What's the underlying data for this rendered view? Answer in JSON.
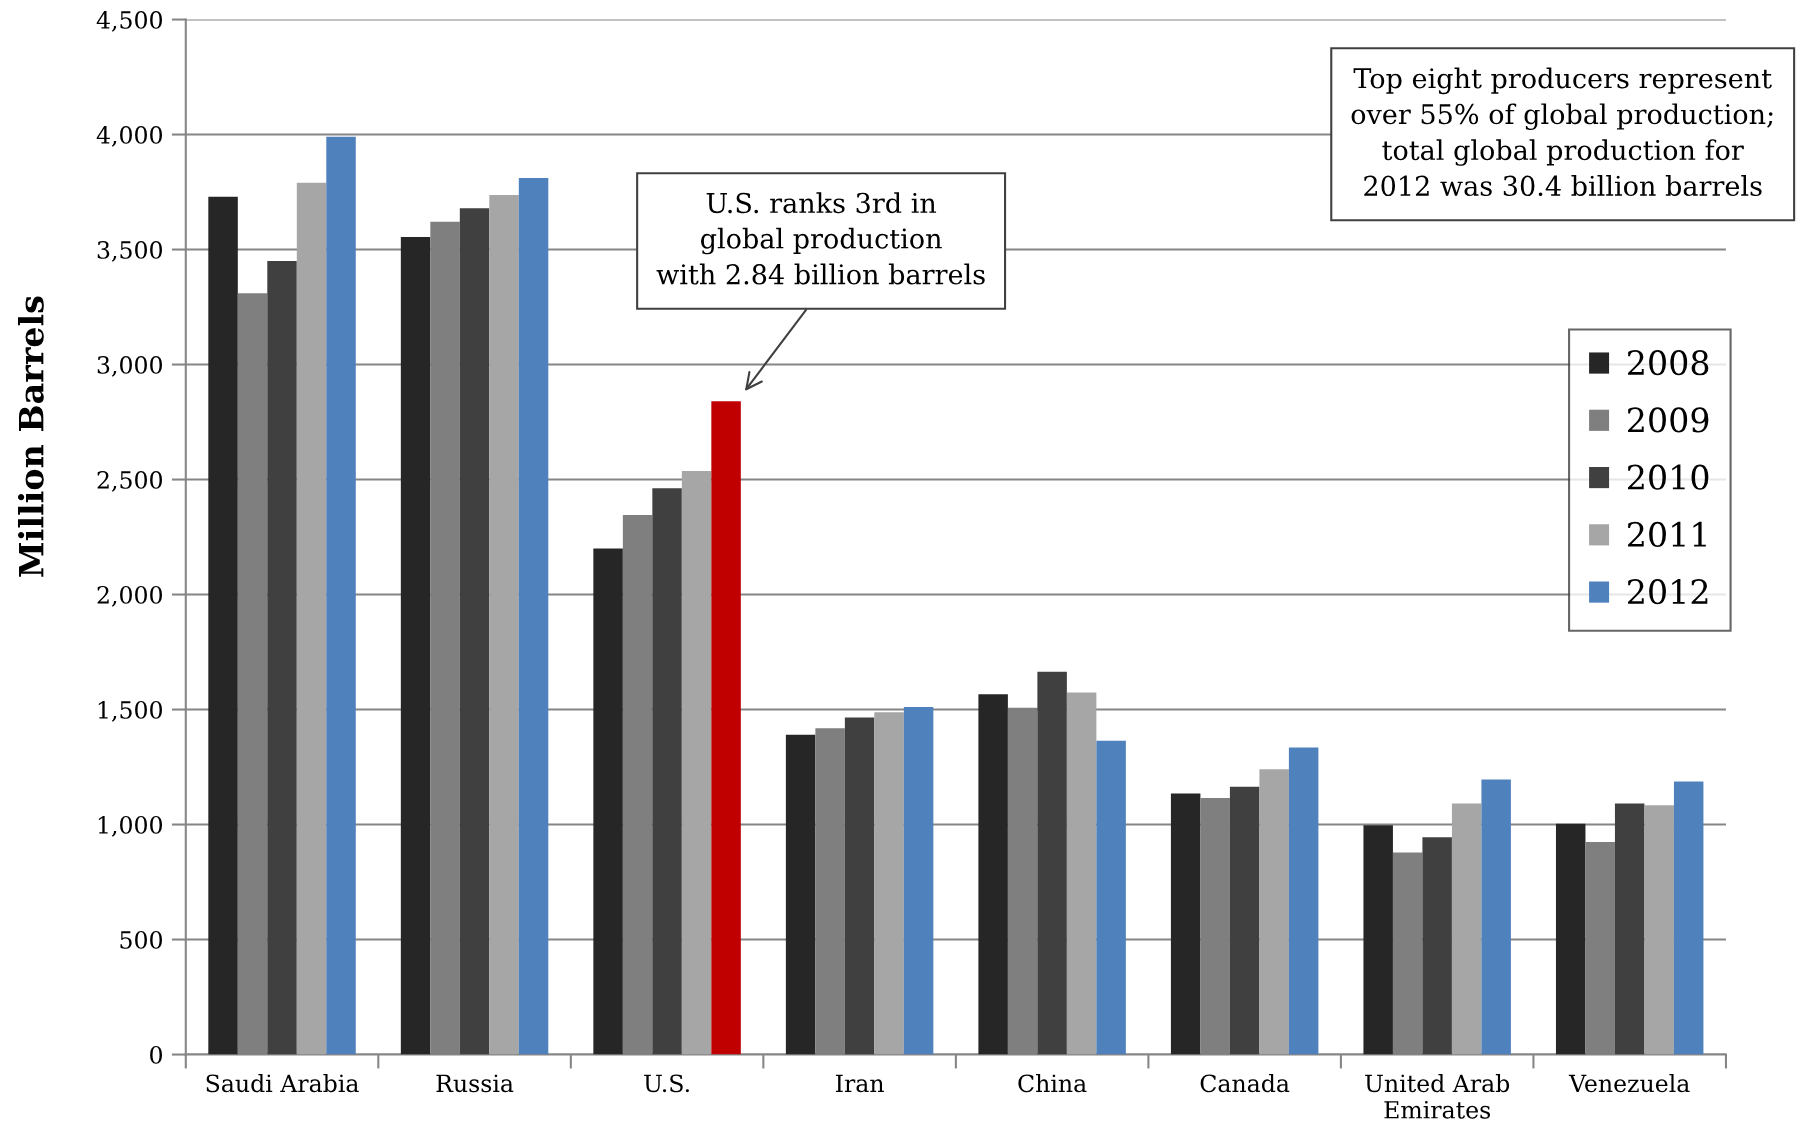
{
  "chart_data": {
    "type": "bar",
    "ylabel": "Million Barrels",
    "categories": [
      "Saudi Arabia",
      "Russia",
      "U.S.",
      "Iran",
      "China",
      "Canada",
      "United Arab\nEmirates",
      "Venezuela"
    ],
    "series": [
      {
        "name": "2008",
        "color": "#262626",
        "values": [
          3730,
          3555,
          2200,
          1390,
          1566,
          1135,
          997,
          1003
        ]
      },
      {
        "name": "2009",
        "color": "#7f7f7f",
        "values": [
          3310,
          3621,
          2346,
          1419,
          1508,
          1115,
          878,
          924
        ]
      },
      {
        "name": "2010",
        "color": "#404040",
        "values": [
          3450,
          3680,
          2462,
          1465,
          1664,
          1164,
          945,
          1092
        ]
      },
      {
        "name": "2011",
        "color": "#a6a6a6",
        "values": [
          3790,
          3737,
          2537,
          1488,
          1574,
          1240,
          1092,
          1084
        ]
      },
      {
        "name": "2012",
        "color": "#4f81bd",
        "colors": [
          "#4f81bd",
          "#4f81bd",
          "#c00000",
          "#4f81bd",
          "#4f81bd",
          "#4f81bd",
          "#4f81bd",
          "#4f81bd"
        ],
        "values": [
          3990,
          3811,
          2840,
          1511,
          1364,
          1335,
          1196,
          1187
        ]
      }
    ],
    "ylim": [
      0,
      4500
    ],
    "yticks": [
      0,
      500,
      {
        "value": 1000,
        "label": "1,000"
      },
      {
        "value": 1500,
        "label": "1,500"
      },
      {
        "value": 2000,
        "label": "2,000"
      },
      {
        "value": 2500,
        "label": "2,500"
      },
      {
        "value": 3000,
        "label": "3,000"
      },
      {
        "value": 3500,
        "label": "3,500"
      },
      {
        "value": 4000,
        "label": "4,000"
      },
      {
        "value": 4500,
        "label": "4,500"
      }
    ],
    "grid": "y",
    "legend": "right",
    "annotations": [
      "U.S. ranks 3rd in\nglobal production\nwith 2.84 billion barrels",
      "Top eight producers represent\nover 55% of global production;\ntotal global production for\n2012 was 30.4 billion barrels"
    ]
  }
}
